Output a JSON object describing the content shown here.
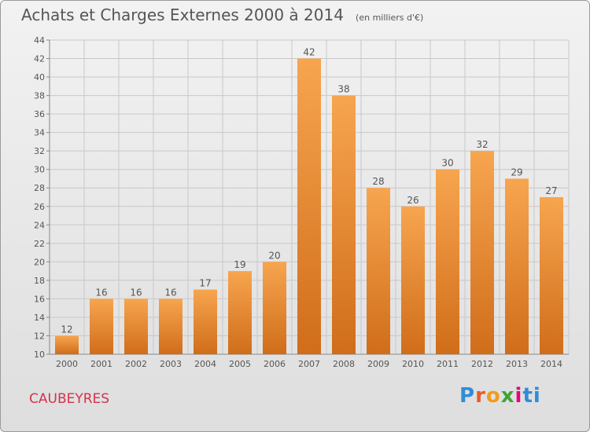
{
  "header": {
    "title": "Achats et Charges Externes 2000 à 2014",
    "subtitle": "(en milliers d'€)"
  },
  "footer": {
    "commune": "CAUBEYRES",
    "brand_letters": [
      "P",
      "r",
      "o",
      "x",
      "i",
      "ti"
    ]
  },
  "colors": {
    "bar_top": "#f7a54f",
    "bar_bottom": "#d06d1a",
    "grid": "#c8c8c8",
    "text": "#555555",
    "commune": "#d2344a"
  },
  "chart_data": {
    "type": "bar",
    "title": "Achats et Charges Externes 2000 à 2014",
    "subtitle": "(en milliers d'€)",
    "categories": [
      "2000",
      "2001",
      "2002",
      "2003",
      "2004",
      "2005",
      "2006",
      "2007",
      "2008",
      "2009",
      "2010",
      "2011",
      "2012",
      "2013",
      "2014"
    ],
    "values": [
      12,
      16,
      16,
      16,
      17,
      19,
      20,
      42,
      38,
      28,
      26,
      30,
      32,
      29,
      27
    ],
    "ylim": [
      10,
      44
    ],
    "yticks": [
      10,
      12,
      14,
      16,
      18,
      20,
      22,
      24,
      26,
      28,
      30,
      32,
      34,
      36,
      38,
      40,
      42,
      44
    ],
    "grid": true,
    "data_labels": true
  }
}
